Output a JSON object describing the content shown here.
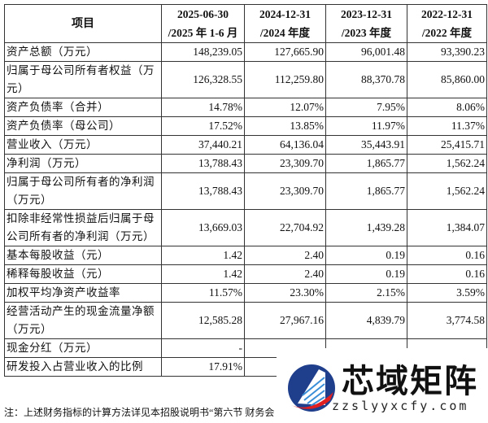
{
  "header": [
    "项目",
    "2025-06-30\n/2025 年 1-6 月",
    "2024-12-31\n/2024 年度",
    "2023-12-31\n/2023 年度",
    "2022-12-31\n/2022 年度"
  ],
  "rows": [
    {
      "label": "资产总额（万元）",
      "values": [
        "148,239.05",
        "127,665.90",
        "96,001.48",
        "93,390.23"
      ]
    },
    {
      "label": "归属于母公司所有者权益（万元）",
      "values": [
        "126,328.55",
        "112,259.80",
        "88,370.78",
        "85,860.00"
      ]
    },
    {
      "label": "资产负债率（合并）",
      "values": [
        "14.78%",
        "12.07%",
        "7.95%",
        "8.06%"
      ]
    },
    {
      "label": "资产负债率（母公司）",
      "values": [
        "17.52%",
        "13.85%",
        "11.97%",
        "11.37%"
      ]
    },
    {
      "label": "营业收入（万元）",
      "values": [
        "37,440.21",
        "64,136.04",
        "35,443.91",
        "25,415.71"
      ]
    },
    {
      "label": "净利润（万元）",
      "values": [
        "13,788.43",
        "23,309.70",
        "1,865.77",
        "1,562.24"
      ]
    },
    {
      "label": "归属于母公司所有者的净利润（万元）",
      "values": [
        "13,788.43",
        "23,309.70",
        "1,865.77",
        "1,562.24"
      ]
    },
    {
      "label": "扣除非经常性损益后归属于母公司所有者的净利润（万元）",
      "values": [
        "13,669.03",
        "22,704.92",
        "1,439.28",
        "1,384.07"
      ]
    },
    {
      "label": "基本每股收益（元）",
      "values": [
        "1.42",
        "2.40",
        "0.19",
        "0.16"
      ]
    },
    {
      "label": "稀释每股收益（元）",
      "values": [
        "1.42",
        "2.40",
        "0.19",
        "0.16"
      ]
    },
    {
      "label": "加权平均净资产收益率",
      "values": [
        "11.57%",
        "23.30%",
        "2.15%",
        "3.59%"
      ]
    },
    {
      "label": "经营活动产生的现金流量净额（万元）",
      "values": [
        "12,585.28",
        "27,967.16",
        "4,839.79",
        "3,774.58"
      ]
    },
    {
      "label": "现金分红（万元）",
      "values": [
        "-",
        "",
        "",
        ""
      ]
    },
    {
      "label": "研发投入占营业收入的比例",
      "values": [
        "17.91%",
        "",
        "",
        ""
      ]
    }
  ],
  "note": "注：上述财务指标的计算方法详见本招股说明书“第六节 财务会",
  "watermark": {
    "brand": "芯域矩阵",
    "url": "zzslyyxcfy.com"
  }
}
